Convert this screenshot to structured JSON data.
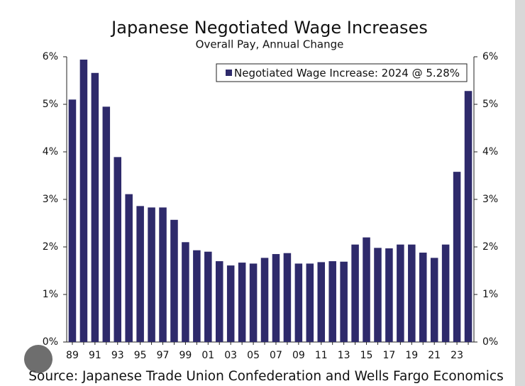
{
  "chart_data": {
    "type": "bar",
    "title": "Japanese Negotiated Wage Increases",
    "subtitle": "Overall Pay, Annual Change",
    "source": "Source: Japanese Trade Union Confederation and Wells Fargo Economics",
    "categories": [
      "89",
      null,
      "91",
      null,
      "93",
      null,
      "95",
      null,
      "97",
      null,
      "99",
      null,
      "01",
      null,
      "03",
      null,
      "05",
      null,
      "07",
      null,
      "09",
      null,
      "11",
      null,
      "13",
      null,
      "15",
      null,
      "17",
      null,
      "19",
      null,
      "21",
      null,
      "23",
      null
    ],
    "series": [
      {
        "name": "Negotiated Wage Increase: 2024 @ 5.28%",
        "color": "#2e2a6b",
        "values": [
          5.1,
          5.94,
          5.66,
          4.95,
          3.89,
          3.11,
          2.86,
          2.83,
          2.83,
          2.57,
          2.1,
          1.93,
          1.9,
          1.7,
          1.61,
          1.67,
          1.65,
          1.77,
          1.85,
          1.87,
          1.65,
          1.65,
          1.68,
          1.7,
          1.69,
          2.05,
          2.2,
          1.98,
          1.97,
          2.05,
          2.05,
          1.88,
          1.77,
          2.05,
          3.58,
          5.28
        ]
      }
    ],
    "ylim": [
      0,
      6
    ],
    "yticks": [
      {
        "value": 0,
        "label": "0%"
      },
      {
        "value": 1,
        "label": "1%"
      },
      {
        "value": 2,
        "label": "2%"
      },
      {
        "value": 3,
        "label": "3%"
      },
      {
        "value": 4,
        "label": "4%"
      },
      {
        "value": 5,
        "label": "5%"
      },
      {
        "value": 6,
        "label": "6%"
      }
    ],
    "y2lim": [
      0,
      6
    ],
    "y2ticks": [
      {
        "value": 0,
        "label": "0%"
      },
      {
        "value": 1,
        "label": "1%"
      },
      {
        "value": 2,
        "label": "2%"
      },
      {
        "value": 3,
        "label": "3%"
      },
      {
        "value": 4,
        "label": "4%"
      },
      {
        "value": 5,
        "label": "5%"
      },
      {
        "value": 6,
        "label": "6%"
      }
    ],
    "legend": "top-right",
    "grid": false
  }
}
